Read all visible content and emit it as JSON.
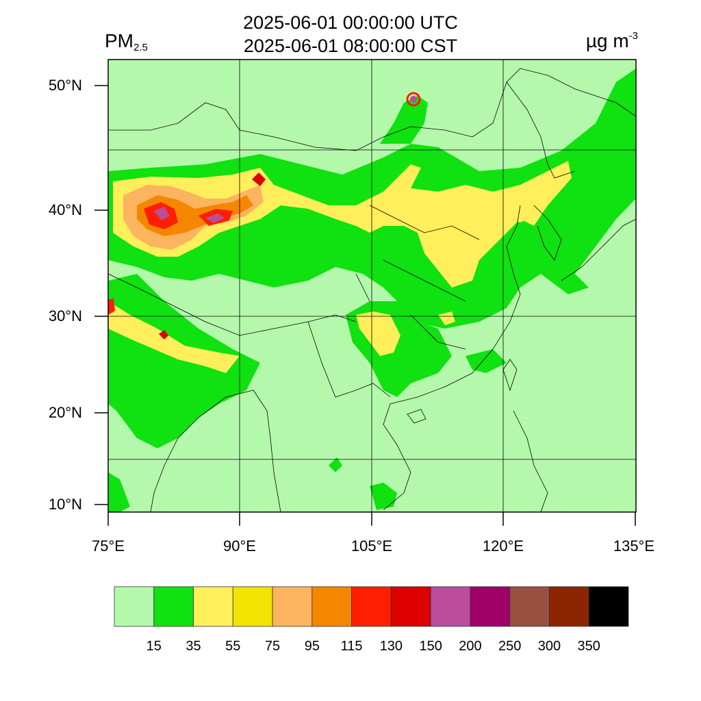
{
  "title": {
    "variable": "PM",
    "variable_sub": "2.5",
    "line1": "2025-06-01 00:00:00 UTC",
    "line2": "2025-06-01 08:00:00 CST",
    "unit": "µg m",
    "unit_sup": "-3"
  },
  "axes": {
    "lat_labels": [
      "50°N",
      "40°N",
      "30°N",
      "20°N",
      "10°N"
    ],
    "lon_labels": [
      "75°E",
      "90°E",
      "105°E",
      "120°E",
      "135°E"
    ]
  },
  "colorbar": {
    "labels": [
      "15",
      "35",
      "55",
      "75",
      "95",
      "115",
      "130",
      "150",
      "200",
      "250",
      "300",
      "350"
    ],
    "colors": [
      "#b4f9ab",
      "#10e110",
      "#ffef5a",
      "#f2e400",
      "#fdb45e",
      "#f58600",
      "#ff1e00",
      "#dc0000",
      "#bb4d9c",
      "#9e0068",
      "#985041",
      "#8c2600",
      "#000000"
    ]
  },
  "palette": {
    "background": "#b4f9ab",
    "moderate": "#10e110",
    "high": "#ffef5a",
    "very_high": "#f2e400",
    "unhealthy": "#fdb45e",
    "severe": "#f58600",
    "extreme": "#ff1e00",
    "hazard": "#dc0000",
    "peak": "#bb4d9c"
  }
}
